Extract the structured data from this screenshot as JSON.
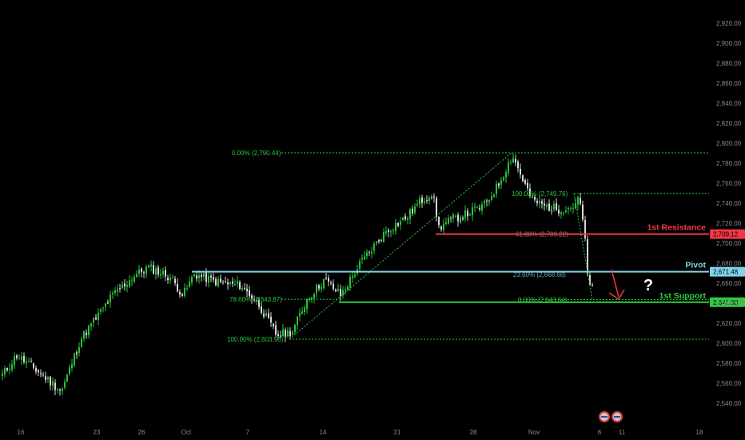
{
  "chart_data": {
    "type": "candlestick",
    "y_ticks": [
      "2,920.00",
      "2,900.00",
      "2,880.00",
      "2,860.00",
      "2,840.00",
      "2,820.00",
      "2,800.00",
      "2,780.00",
      "2,760.00",
      "2,740.00",
      "2,720.00",
      "2,700.00",
      "2,680.00",
      "2,660.00",
      "2,640.00",
      "2,620.00",
      "2,600.00",
      "2,580.00",
      "2,560.00",
      "2,540.00"
    ],
    "y_tick_values": [
      2920,
      2900,
      2880,
      2860,
      2840,
      2820,
      2800,
      2780,
      2760,
      2740,
      2720,
      2700,
      2680,
      2660,
      2640,
      2620,
      2600,
      2580,
      2560,
      2540
    ],
    "x_ticks": [
      "16",
      "23",
      "26",
      "Oct",
      "7",
      "14",
      "21",
      "28",
      "Nov",
      "6",
      "11",
      "18"
    ],
    "levels": [
      {
        "name": "1st Resistance",
        "value": 2709.12,
        "label": "2,709.12",
        "color": "#f23645"
      },
      {
        "name": "Pivot",
        "value": 2671.48,
        "label": "2,671.48",
        "color": "#7fd3ea"
      },
      {
        "name": "1st Support",
        "value": 2641.0,
        "label": "2,641.00",
        "color": "#2ecc40"
      }
    ],
    "fib_labels": [
      {
        "text": "0.00% (2,790.44)",
        "value": 2790.44
      },
      {
        "text": "100.00% (2,603.96)",
        "value": 2603.96
      },
      {
        "text": "78.60% (2,643.87)",
        "value": 2643.87
      },
      {
        "text": "100.00% (2,749.76)",
        "value": 2749.76
      },
      {
        "text": "61.80% (2,709.22)",
        "value": 2709.22
      },
      {
        "text": "23.60% (2,668.68)",
        "value": 2668.68
      },
      {
        "text": "0.00% (2,643.64)",
        "value": 2643.64
      }
    ],
    "question_mark": "?",
    "colors": {
      "up": "#26c438",
      "down": "#d8d8d8",
      "fib": "#29c93a",
      "background": "#000000"
    }
  }
}
